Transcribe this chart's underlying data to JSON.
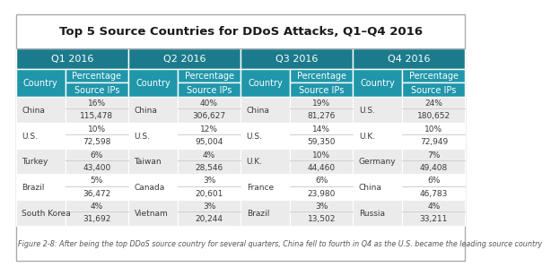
{
  "title": "Top 5 Source Countries for DDoS Attacks, Q1–Q4 2016",
  "caption": "Figure 2-8: After being the top DDoS source country for several quarters, China fell to fourth in Q4 as the U.S. became the leading source country",
  "quarters": [
    "Q1 2016",
    "Q2 2016",
    "Q3 2016",
    "Q4 2016"
  ],
  "header_color": "#1b7b8c",
  "subheader_color": "#2096aa",
  "row_colors": [
    "#ebebeb",
    "#ffffff"
  ],
  "white": "#ffffff",
  "text_color_header": "#ffffff",
  "text_color_data": "#3a3a3a",
  "caption_color": "#555555",
  "outer_border_color": "#cccccc",
  "divider_color": "#bbbbbb",
  "q1": [
    [
      "China",
      "16%",
      "115,478"
    ],
    [
      "U.S.",
      "10%",
      "72,598"
    ],
    [
      "Turkey",
      "6%",
      "43,400"
    ],
    [
      "Brazil",
      "5%",
      "36,472"
    ],
    [
      "South Korea",
      "4%",
      "31,692"
    ]
  ],
  "q2": [
    [
      "China",
      "40%",
      "306,627"
    ],
    [
      "U.S.",
      "12%",
      "95,004"
    ],
    [
      "Taiwan",
      "4%",
      "28,546"
    ],
    [
      "Canada",
      "3%",
      "20,601"
    ],
    [
      "Vietnam",
      "3%",
      "20,244"
    ]
  ],
  "q3": [
    [
      "China",
      "19%",
      "81,276"
    ],
    [
      "U.S.",
      "14%",
      "59,350"
    ],
    [
      "U.K.",
      "10%",
      "44,460"
    ],
    [
      "France",
      "6%",
      "23,980"
    ],
    [
      "Brazil",
      "3%",
      "13,502"
    ]
  ],
  "q4": [
    [
      "U.S.",
      "24%",
      "180,652"
    ],
    [
      "U.K.",
      "10%",
      "72,949"
    ],
    [
      "Germany",
      "7%",
      "49,408"
    ],
    [
      "China",
      "6%",
      "46,783"
    ],
    [
      "Russia",
      "4%",
      "33,211"
    ]
  ]
}
